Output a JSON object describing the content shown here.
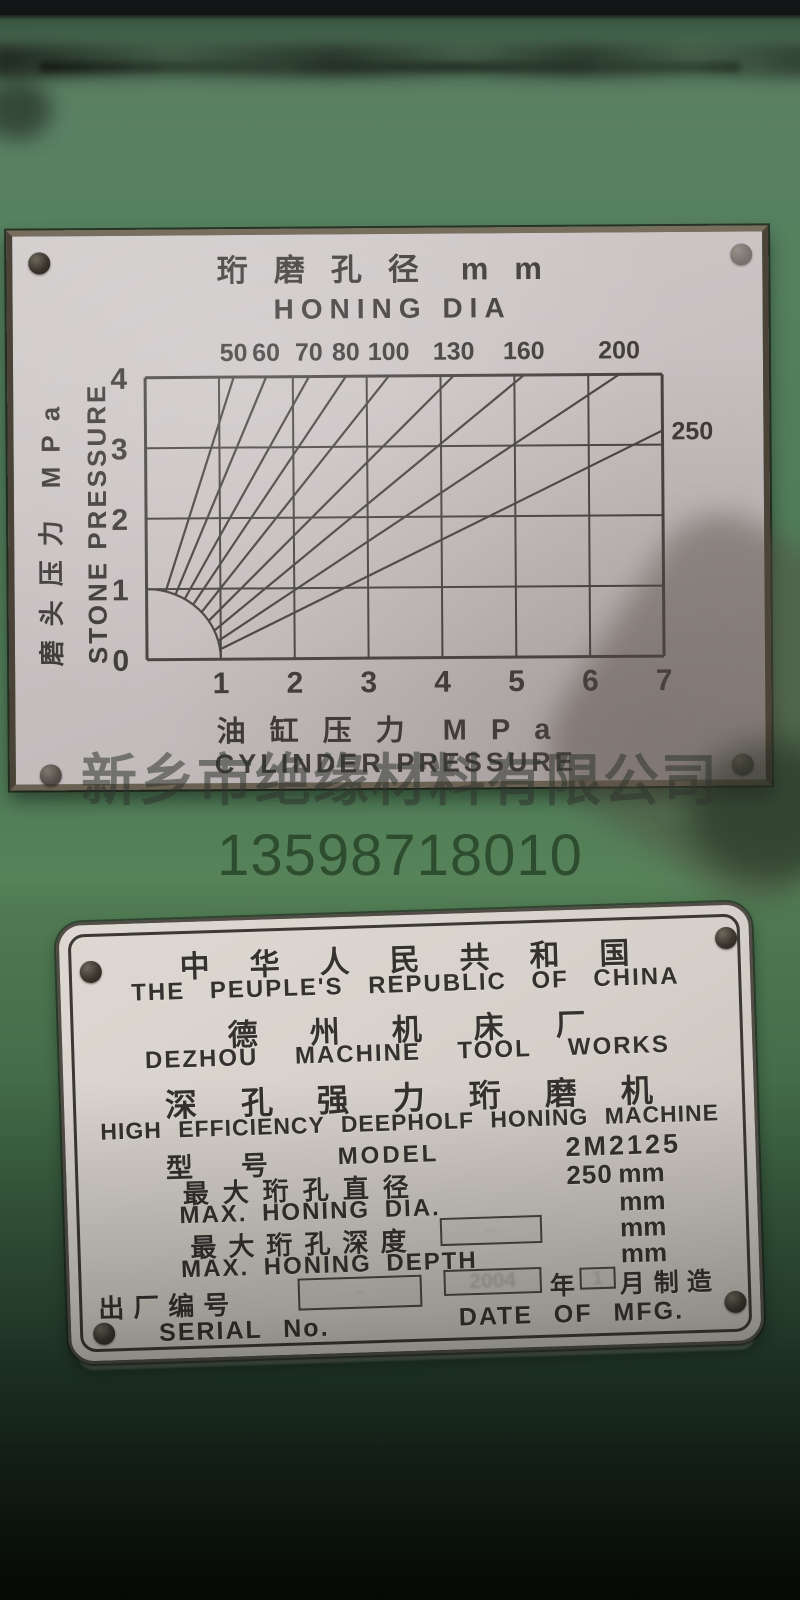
{
  "watermark": {
    "company": "新乡市绝缘材料有限公司",
    "phone": "13598718010"
  },
  "chart_data": {
    "type": "line",
    "title_cn": "珩磨孔径",
    "title_unit": "mm",
    "title_en": "HONING DIA",
    "xlabel_cn": "油缸压力",
    "xlabel_unit": "MPa",
    "xlabel_en": "CYLINDER PRESSURE",
    "ylabel_cn": "磨头压力",
    "ylabel_unit": "MPa",
    "ylabel_en": "STONE PRESSURE",
    "xlim": [
      0,
      7
    ],
    "ylim": [
      0,
      4
    ],
    "x_ticks": [
      1,
      2,
      3,
      4,
      5,
      6,
      7
    ],
    "y_ticks": [
      0,
      1,
      2,
      3,
      4
    ],
    "grid": true,
    "legend_position": "none",
    "series": [
      {
        "name": "50",
        "from": [
          0.259,
          0.966
        ],
        "to": [
          1.2,
          4
        ]
      },
      {
        "name": "60",
        "from": [
          0.391,
          0.921
        ],
        "to": [
          1.64,
          4
        ]
      },
      {
        "name": "70",
        "from": [
          0.515,
          0.857
        ],
        "to": [
          2.22,
          4
        ]
      },
      {
        "name": "80",
        "from": [
          0.629,
          0.777
        ],
        "to": [
          2.72,
          4
        ]
      },
      {
        "name": "100",
        "from": [
          0.743,
          0.669
        ],
        "to": [
          3.3,
          4
        ]
      },
      {
        "name": "130",
        "from": [
          0.839,
          0.545
        ],
        "to": [
          4.18,
          4
        ]
      },
      {
        "name": "160",
        "from": [
          0.914,
          0.407
        ],
        "to": [
          5.13,
          4
        ]
      },
      {
        "name": "200",
        "from": [
          0.966,
          0.259
        ],
        "to": [
          6.42,
          4
        ]
      },
      {
        "name": "250",
        "from": [
          0.99,
          0.139
        ],
        "to": [
          7.0,
          3.2
        ]
      }
    ],
    "envelope_arc": {
      "center": [
        0,
        0
      ],
      "radius": 1,
      "from_deg": 90,
      "to_deg": 0
    }
  },
  "nameplate": {
    "country_cn": "中华人民共和国",
    "country_en": "THE PEUPLE'S REPUBLIC OF CHINA",
    "factory_cn": "德州机床厂",
    "factory_en": "DEZHOU MACHINE TOOL WORKS",
    "machine_cn": "深孔强力珩磨机",
    "machine_en": "HIGH EFFICIENCY DEEPHOLF HONING MACHINE",
    "model_cn": "型号",
    "model_en": "MODEL",
    "model_value": "2M2125",
    "dia_cn": "最大珩孔直径",
    "dia_en": "MAX. HONING DIA.",
    "dia_value": "250",
    "unit_mm": "mm",
    "depth_cn": "最大珩孔深度",
    "depth_en": "MAX. HONING DEPTH",
    "serial_cn": "出厂编号",
    "serial_en": "SERIAL No.",
    "year_cn": "年",
    "month_cn": "月",
    "made_cn": "制造",
    "date_en": "DATE OF MFG.",
    "stamp_year": "2004",
    "stamp_month": "1"
  }
}
